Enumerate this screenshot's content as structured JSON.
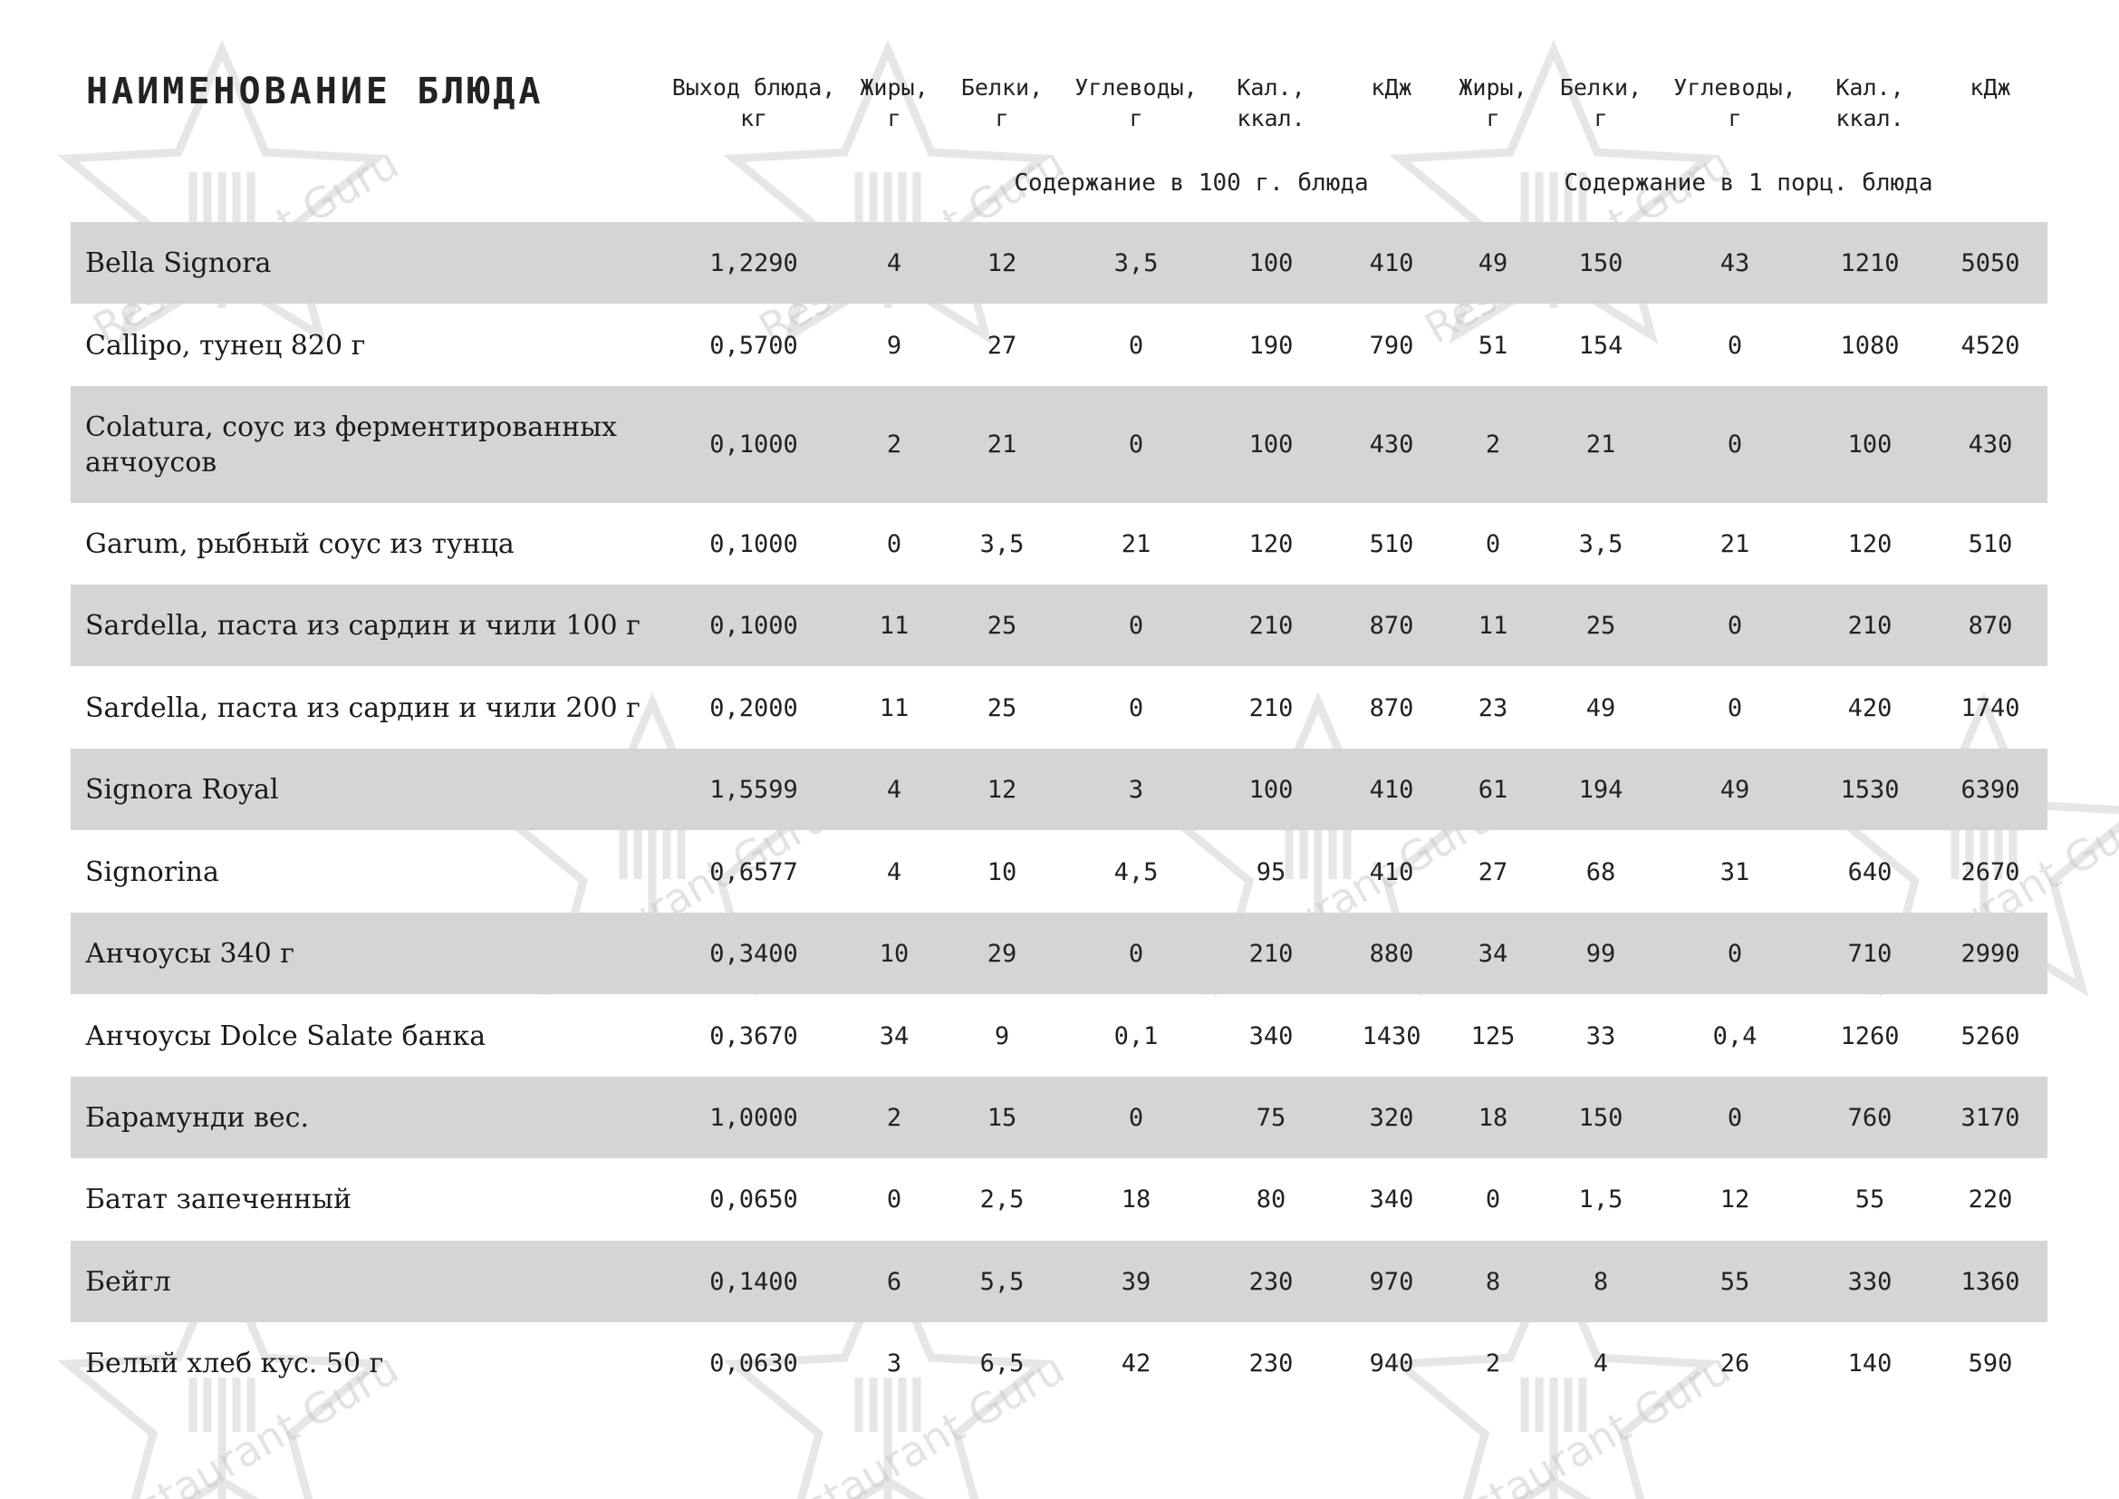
{
  "header": {
    "title": "НАИМЕНОВАНИЕ БЛЮДА",
    "columns": [
      [
        "Выход блюда,",
        "кг"
      ],
      [
        "Жиры,",
        "г"
      ],
      [
        "Белки,",
        "г"
      ],
      [
        "Углеводы,",
        "г"
      ],
      [
        "Кал.,",
        "ккал."
      ],
      [
        "кДж",
        ""
      ],
      [
        "Жиры,",
        "г"
      ],
      [
        "Белки,",
        "г"
      ],
      [
        "Углеводы,",
        "г"
      ],
      [
        "Кал.,",
        "ккал."
      ],
      [
        "кДж",
        ""
      ]
    ],
    "group_per_100g": "Содержание в 100 г. блюда",
    "group_per_portion": "Содержание в 1 порц. блюда"
  },
  "rows": [
    {
      "name": "Bella Signora",
      "values": [
        "1,2290",
        "4",
        "12",
        "3,5",
        "100",
        "410",
        "49",
        "150",
        "43",
        "1210",
        "5050"
      ]
    },
    {
      "name": "Callipo, тунец 820 г",
      "values": [
        "0,5700",
        "9",
        "27",
        "0",
        "190",
        "790",
        "51",
        "154",
        "0",
        "1080",
        "4520"
      ]
    },
    {
      "name": "Colatura, соус из ферментированных анчоусов",
      "values": [
        "0,1000",
        "2",
        "21",
        "0",
        "100",
        "430",
        "2",
        "21",
        "0",
        "100",
        "430"
      ]
    },
    {
      "name": "Garum, рыбный соус из тунца",
      "values": [
        "0,1000",
        "0",
        "3,5",
        "21",
        "120",
        "510",
        "0",
        "3,5",
        "21",
        "120",
        "510"
      ]
    },
    {
      "name": "Sardella, паста из сардин и чили 100 г",
      "values": [
        "0,1000",
        "11",
        "25",
        "0",
        "210",
        "870",
        "11",
        "25",
        "0",
        "210",
        "870"
      ]
    },
    {
      "name": "Sardella, паста из сардин и чили 200 г",
      "values": [
        "0,2000",
        "11",
        "25",
        "0",
        "210",
        "870",
        "23",
        "49",
        "0",
        "420",
        "1740"
      ]
    },
    {
      "name": "Signora Royal",
      "values": [
        "1,5599",
        "4",
        "12",
        "3",
        "100",
        "410",
        "61",
        "194",
        "49",
        "1530",
        "6390"
      ]
    },
    {
      "name": "Signorina",
      "values": [
        "0,6577",
        "4",
        "10",
        "4,5",
        "95",
        "410",
        "27",
        "68",
        "31",
        "640",
        "2670"
      ]
    },
    {
      "name": "Анчоусы 340 г",
      "values": [
        "0,3400",
        "10",
        "29",
        "0",
        "210",
        "880",
        "34",
        "99",
        "0",
        "710",
        "2990"
      ]
    },
    {
      "name": "Анчоусы Dolce Salate банка",
      "values": [
        "0,3670",
        "34",
        "9",
        "0,1",
        "340",
        "1430",
        "125",
        "33",
        "0,4",
        "1260",
        "5260"
      ]
    },
    {
      "name": "Барамунди вес.",
      "values": [
        "1,0000",
        "2",
        "15",
        "0",
        "75",
        "320",
        "18",
        "150",
        "0",
        "760",
        "3170"
      ]
    },
    {
      "name": "Батат запеченный",
      "values": [
        "0,0650",
        "0",
        "2,5",
        "18",
        "80",
        "340",
        "0",
        "1,5",
        "12",
        "55",
        "220"
      ]
    },
    {
      "name": "Бейгл",
      "values": [
        "0,1400",
        "6",
        "5,5",
        "39",
        "230",
        "970",
        "8",
        "8",
        "55",
        "330",
        "1360"
      ]
    },
    {
      "name": "Белый хлеб кус. 50 г",
      "values": [
        "0,0630",
        "3",
        "6,5",
        "42",
        "230",
        "940",
        "2",
        "4",
        "26",
        "140",
        "590"
      ]
    }
  ],
  "watermark": "Restaurant Guru",
  "colors": {
    "row_shade": "#d4d5d7",
    "text": "#1b1b1b",
    "watermark": "#c8c8c8"
  }
}
